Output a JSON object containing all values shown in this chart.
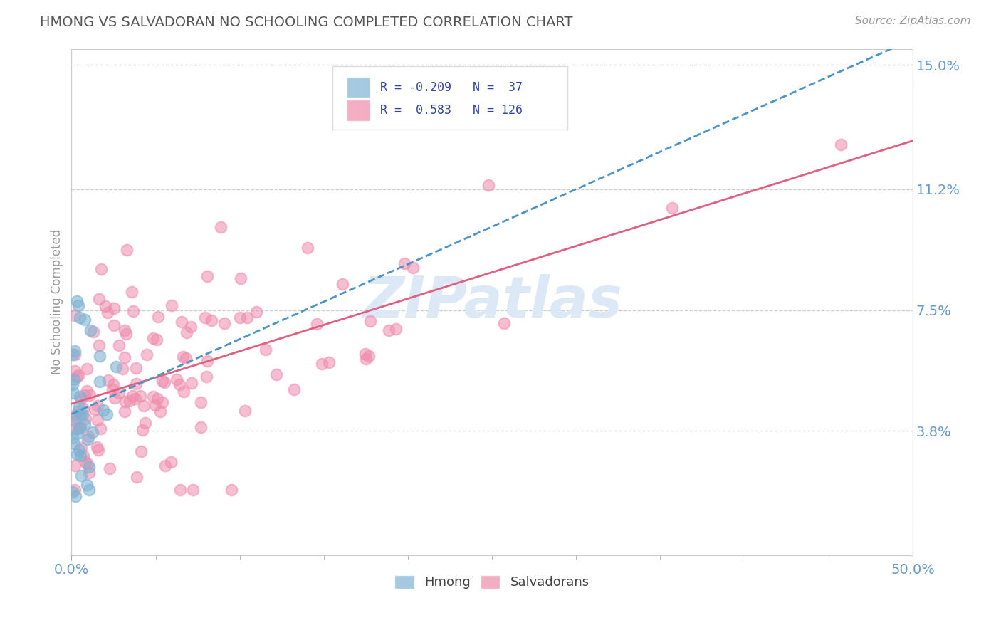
{
  "title": "HMONG VS SALVADORAN NO SCHOOLING COMPLETED CORRELATION CHART",
  "source_text": "Source: ZipAtlas.com",
  "ylabel": "No Schooling Completed",
  "xlim": [
    0.0,
    0.5
  ],
  "ylim": [
    0.0,
    0.155
  ],
  "ytick_labels": [
    "3.8%",
    "7.5%",
    "11.2%",
    "15.0%"
  ],
  "ytick_values": [
    0.038,
    0.075,
    0.112,
    0.15
  ],
  "hmong_color": "#7fb3d3",
  "salvadoran_color": "#f08cac",
  "hmong_line_color": "#4d94c8",
  "salvadoran_line_color": "#e06080",
  "hmong_R": -0.209,
  "hmong_N": 37,
  "salvadoran_R": 0.583,
  "salvadoran_N": 126,
  "background_color": "#ffffff",
  "grid_color": "#cccccc",
  "title_color": "#555555",
  "axis_label_color": "#6699cc",
  "watermark_color": "#dce8f5",
  "legend_text_color": "#3344aa"
}
